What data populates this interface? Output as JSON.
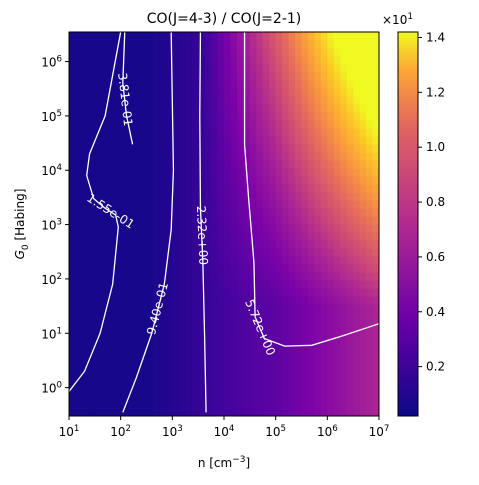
{
  "chart_data": {
    "type": "heatmap",
    "title": "CO(J=4-3) / CO(J=2-1)",
    "xlabel": "n [cm$^{-3}$]",
    "ylabel": "$G_0$ [Habing]",
    "x_scale": "log",
    "y_scale": "log",
    "xlim": [
      10,
      10000000
    ],
    "ylim": [
      0.3,
      3500000
    ],
    "colormap": "plasma",
    "x_ticks": [
      {
        "mant": "10",
        "exp": "1",
        "value": 10
      },
      {
        "mant": "10",
        "exp": "2",
        "value": 100
      },
      {
        "mant": "10",
        "exp": "3",
        "value": 1000
      },
      {
        "mant": "10",
        "exp": "4",
        "value": 10000
      },
      {
        "mant": "10",
        "exp": "5",
        "value": 100000
      },
      {
        "mant": "10",
        "exp": "6",
        "value": 1000000
      },
      {
        "mant": "10",
        "exp": "7",
        "value": 10000000
      }
    ],
    "y_ticks": [
      {
        "mant": "10",
        "exp": "0",
        "value": 1
      },
      {
        "mant": "10",
        "exp": "1",
        "value": 10
      },
      {
        "mant": "10",
        "exp": "2",
        "value": 100
      },
      {
        "mant": "10",
        "exp": "3",
        "value": 1000
      },
      {
        "mant": "10",
        "exp": "4",
        "value": 10000
      },
      {
        "mant": "10",
        "exp": "5",
        "value": 100000
      },
      {
        "mant": "10",
        "exp": "6",
        "value": 1000000
      }
    ],
    "colorbar": {
      "multiplier_mant": "×10",
      "multiplier_exp": "1",
      "range": [
        0.02,
        1.42
      ],
      "ticks": [
        {
          "label": "0.2",
          "value": 0.2
        },
        {
          "label": "0.4",
          "value": 0.4
        },
        {
          "label": "0.6",
          "value": 0.6
        },
        {
          "label": "0.8",
          "value": 0.8
        },
        {
          "label": "1.0",
          "value": 1.0
        },
        {
          "label": "1.2",
          "value": 1.2
        },
        {
          "label": "1.4",
          "value": 1.4
        }
      ]
    },
    "contours": [
      {
        "label": "1.55e-01",
        "level": 0.155,
        "points": [
          [
            10,
            0.85
          ],
          [
            20,
            2
          ],
          [
            40,
            10
          ],
          [
            70,
            80
          ],
          [
            90,
            900
          ],
          [
            80,
            1500
          ],
          [
            50,
            2000
          ],
          [
            30,
            3000
          ],
          [
            22,
            8000
          ],
          [
            25,
            20000
          ],
          [
            50,
            100000
          ],
          [
            100,
            3500000
          ]
        ]
      },
      {
        "label": "3.81e-01",
        "level": 0.381,
        "points": [
          [
            120,
            3500000
          ],
          [
            110,
            400000
          ],
          [
            130,
            100000
          ],
          [
            170,
            30000
          ]
        ]
      },
      {
        "label": "9.40e-01",
        "level": 0.94,
        "points": [
          [
            110,
            0.35
          ],
          [
            200,
            1.5
          ],
          [
            400,
            10
          ],
          [
            700,
            80
          ],
          [
            950,
            800
          ],
          [
            1050,
            10000
          ],
          [
            950,
            3500000
          ]
        ]
      },
      {
        "label": "2.32e+00",
        "level": 2.32,
        "points": [
          [
            4500,
            0.35
          ],
          [
            4200,
            10
          ],
          [
            3900,
            200
          ],
          [
            3500,
            2000
          ],
          [
            3400,
            100000
          ],
          [
            3500,
            3500000
          ]
        ]
      },
      {
        "label": "5.72e+00",
        "level": 5.72,
        "points": [
          [
            10000000,
            15
          ],
          [
            2000000,
            9
          ],
          [
            500000,
            6
          ],
          [
            150000,
            5.8
          ],
          [
            60000,
            8
          ],
          [
            40000,
            20
          ],
          [
            38000,
            200
          ],
          [
            30000,
            3000
          ],
          [
            25000,
            30000
          ],
          [
            25000,
            3500000
          ]
        ]
      }
    ]
  }
}
